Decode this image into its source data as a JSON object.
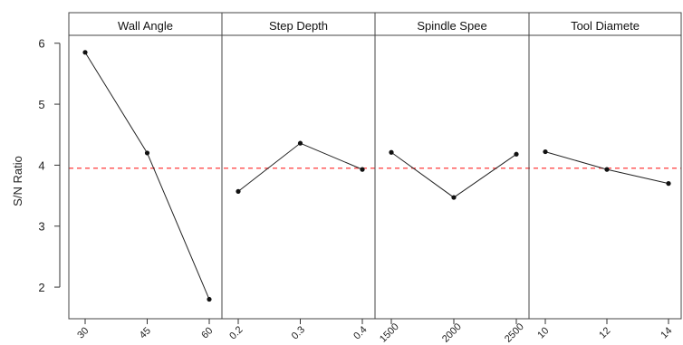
{
  "chart_data": {
    "type": "line",
    "title": "",
    "ylabel": "S/N Ratio",
    "ylim": [
      1.6,
      6.1
    ],
    "yticks": [
      2,
      3,
      4,
      5,
      6
    ],
    "reference_line": {
      "value": 3.95,
      "style": "dashed",
      "color": "#ff3b3b"
    },
    "panels": [
      {
        "title": "Wall Angle",
        "x": [
          "30",
          "45",
          "60"
        ],
        "values": [
          5.85,
          4.2,
          1.8
        ]
      },
      {
        "title": "Step Depth",
        "x": [
          "0.2",
          "0.3",
          "0.4"
        ],
        "values": [
          3.57,
          4.36,
          3.93
        ]
      },
      {
        "title": "Spindle Spee",
        "x": [
          "1500",
          "2000",
          "2500"
        ],
        "values": [
          4.21,
          3.47,
          4.18
        ]
      },
      {
        "title": "Tool Diamete",
        "x": [
          "10",
          "12",
          "14"
        ],
        "values": [
          4.22,
          3.93,
          3.7
        ]
      }
    ],
    "grid": false,
    "line_color": "#222222",
    "marker_color": "#111111"
  }
}
